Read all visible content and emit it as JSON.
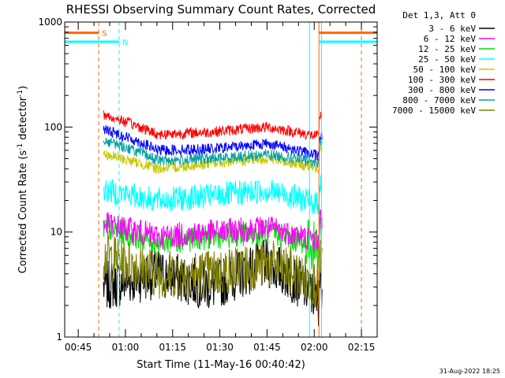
{
  "chart_data": {
    "type": "line",
    "title": "RHESSI Observing Summary Count Rates, Corrected",
    "xlabel": "Start Time (11-May-16 00:40:42)",
    "ylabel_main": "Corrected Count Rate (s",
    "ylabel_sup1": "-1",
    "ylabel_mid": " detector",
    "ylabel_sup2": "-1",
    "ylabel_end": ")",
    "y_scale": "log",
    "ylim": [
      1,
      1000
    ],
    "y_ticks": [
      {
        "value": 1,
        "label": "1"
      },
      {
        "value": 10,
        "label": "10"
      },
      {
        "value": 100,
        "label": "100"
      },
      {
        "value": 1000,
        "label": "1000"
      }
    ],
    "x_range_minutes": [
      40.7,
      140
    ],
    "x_ticks": [
      {
        "minutes": 45,
        "label": "00:45"
      },
      {
        "minutes": 60,
        "label": "01:00"
      },
      {
        "minutes": 75,
        "label": "01:15"
      },
      {
        "minutes": 90,
        "label": "01:30"
      },
      {
        "minutes": 105,
        "label": "01:45"
      },
      {
        "minutes": 120,
        "label": "02:00"
      },
      {
        "minutes": 135,
        "label": "02:15"
      }
    ],
    "legend_title": "Det 1,3, Att 0",
    "legend_position": "outside-right",
    "series": [
      {
        "name": "3 - 6 keV",
        "color": "#000000",
        "base": [
          3,
          4,
          3,
          5,
          2
        ]
      },
      {
        "name": "6 - 12 keV",
        "color": "#ff00ff",
        "base": [
          12,
          9,
          10,
          11,
          8
        ]
      },
      {
        "name": "12 - 25 keV",
        "color": "#00dd00",
        "base": [
          11,
          8,
          9,
          10,
          7
        ]
      },
      {
        "name": "25 - 50 keV",
        "color": "#00ffff",
        "base": [
          25,
          20,
          22,
          25,
          18
        ]
      },
      {
        "name": "50 - 100 keV",
        "color": "#c8c800",
        "base": [
          55,
          40,
          45,
          50,
          40
        ]
      },
      {
        "name": "100 - 300 keV",
        "color": "#ff0000",
        "base": [
          130,
          85,
          90,
          100,
          80
        ]
      },
      {
        "name": "300 - 800 keV",
        "color": "#0000ff",
        "base": [
          95,
          60,
          62,
          70,
          52
        ]
      },
      {
        "name": "800 - 7000 keV",
        "color": "#00a0a0",
        "base": [
          75,
          48,
          50,
          55,
          45
        ]
      },
      {
        "name": "7000 - 15000 keV",
        "color": "#7f7f00",
        "base": [
          6,
          4,
          4,
          5,
          3
        ]
      }
    ],
    "bars": [
      {
        "label": "S",
        "color": "#ff6600",
        "start_min": 40.7,
        "end_min": 51.5,
        "level": 790
      },
      {
        "label": "N",
        "color": "#00ffff",
        "start_min": 40.7,
        "end_min": 58.0,
        "level": 650
      }
    ],
    "vertical_markers": [
      {
        "minutes": 40.7,
        "color": "#00ffff",
        "style": "solid"
      },
      {
        "minutes": 51.5,
        "color": "#ff6600",
        "style": "dashed"
      },
      {
        "minutes": 58.0,
        "color": "#00ffff",
        "style": "dashed"
      },
      {
        "minutes": 118.5,
        "color": "#00ffff",
        "style": "solid"
      },
      {
        "minutes": 121.5,
        "color": "#ff6600",
        "style": "solid"
      },
      {
        "minutes": 122.3,
        "color": "#00ffff",
        "style": "solid"
      },
      {
        "minutes": 135.0,
        "color": "#ff6600",
        "style": "dashed"
      }
    ],
    "data_range_minutes": [
      53.0,
      122.5
    ]
  },
  "footer": {
    "timestamp": "31-Aug-2022 18:25"
  }
}
